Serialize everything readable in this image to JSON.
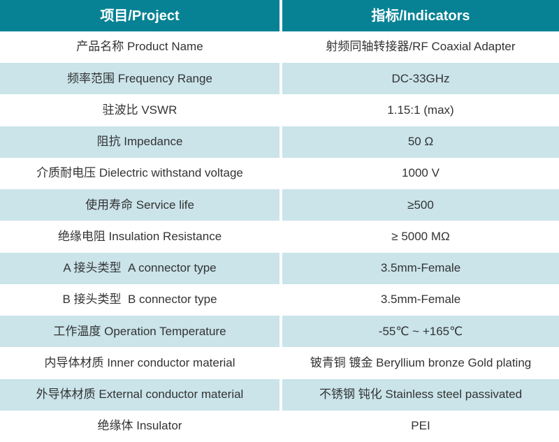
{
  "colors": {
    "header_bg": "#068294",
    "row_alt_bg": "#CAE4EA",
    "row_bg": "#FFFFFF",
    "header_text": "#FFFFFF",
    "body_text": "#333333",
    "divider": "#FFFFFF"
  },
  "table": {
    "header": {
      "project": "项目/Project",
      "indicators": "指标/Indicators"
    },
    "rows": [
      {
        "project": "产品名称 Product Name",
        "indicator": "射频同轴转接器/RF Coaxial Adapter"
      },
      {
        "project": "频率范围 Frequency Range",
        "indicator": "DC-33GHz"
      },
      {
        "project": "驻波比 VSWR",
        "indicator": "1.15:1 (max)"
      },
      {
        "project": "阻抗 Impedance",
        "indicator": "50 Ω"
      },
      {
        "project": "介质耐电压 Dielectric withstand voltage",
        "indicator": "1000 V"
      },
      {
        "project": "使用寿命 Service life",
        "indicator": "≥500"
      },
      {
        "project": "绝缘电阻 Insulation Resistance",
        "indicator": "≥ 5000 MΩ"
      },
      {
        "project": "A 接头类型  A connector type",
        "indicator": "3.5mm-Female"
      },
      {
        "project": "B 接头类型  B connector type",
        "indicator": "3.5mm-Female"
      },
      {
        "project": "工作温度 Operation Temperature",
        "indicator": "-55℃ ~ +165℃"
      },
      {
        "project": "内导体材质 Inner conductor material",
        "indicator": "铍青铜 镀金 Beryllium bronze Gold plating"
      },
      {
        "project": "外导体材质 External conductor material",
        "indicator": "不锈钢 钝化 Stainless steel passivated"
      },
      {
        "project": "绝缘体 Insulator",
        "indicator": "PEI"
      }
    ]
  }
}
